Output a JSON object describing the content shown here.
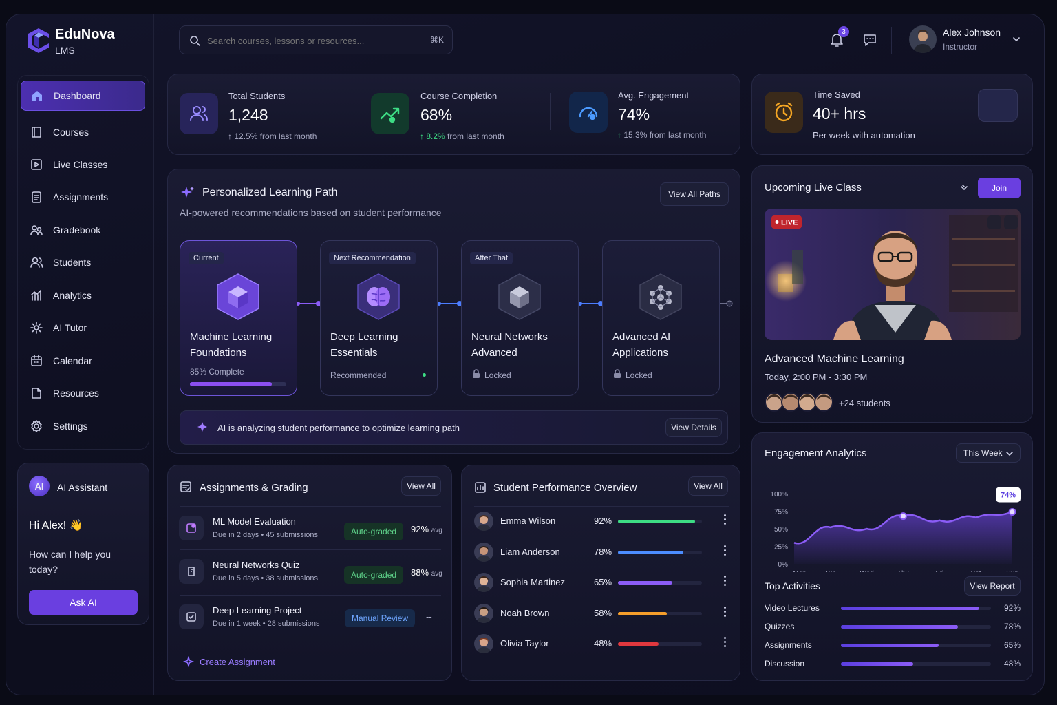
{
  "brand": {
    "name": "EduNova",
    "sub": "LMS"
  },
  "search": {
    "placeholder": "Search courses, lessons or resources...",
    "shortcut": "⌘K"
  },
  "notifications": {
    "count": "3"
  },
  "user": {
    "name": "Alex Johnson",
    "role": "Instructor"
  },
  "sidebar": {
    "items": [
      {
        "label": "Dashboard",
        "icon": "home-icon",
        "active": true
      },
      {
        "label": "Courses",
        "icon": "book-icon"
      },
      {
        "label": "Live Classes",
        "icon": "video-icon"
      },
      {
        "label": "Assignments",
        "icon": "clipboard-icon"
      },
      {
        "label": "Gradebook",
        "icon": "gradebook-icon"
      },
      {
        "label": "Students",
        "icon": "users-icon"
      },
      {
        "label": "Analytics",
        "icon": "analytics-icon"
      },
      {
        "label": "AI Tutor",
        "icon": "sparkle-icon"
      },
      {
        "label": "Calendar",
        "icon": "calendar-icon"
      },
      {
        "label": "Resources",
        "icon": "folder-icon"
      },
      {
        "label": "Settings",
        "icon": "gear-icon"
      }
    ]
  },
  "assistant": {
    "badge": "AI",
    "title": "AI Assistant",
    "greeting": "Hi Alex! 👋",
    "prompt": "How can I help you today?",
    "button": "Ask AI"
  },
  "stats": [
    {
      "label": "Total Students",
      "value": "1,248",
      "change": "12.5%",
      "suffix": "from last month",
      "color": "#8b7cf6"
    },
    {
      "label": "Course Completion",
      "value": "68%",
      "change": "8.2%",
      "suffix": "from last month",
      "color": "#3ddc84"
    },
    {
      "label": "Avg. Engagement",
      "value": "74%",
      "change": "15.3%",
      "suffix": "from last month",
      "color": "#4c9bff"
    }
  ],
  "time_saved": {
    "label": "Time Saved",
    "value": "40+ hrs",
    "sub": "Per week with automation"
  },
  "learning_path": {
    "title": "Personalized Learning Path",
    "subtitle": "AI-powered recommendations based on student performance",
    "button": "View All Paths",
    "cards": [
      {
        "tag": "Current",
        "title1": "Machine Learning",
        "title2": "Foundations",
        "status": "85% Complete",
        "progress": 0.85
      },
      {
        "tag": "Next Recommendation",
        "title1": "Deep Learning",
        "title2": "Essentials",
        "status": "Recommended"
      },
      {
        "tag": "After That",
        "title1": "Neural Networks",
        "title2": "Advanced",
        "status": "Locked"
      },
      {
        "tag": "",
        "title1": "Advanced AI",
        "title2": "Applications",
        "status": "Locked"
      }
    ],
    "ai_note": "AI is analyzing student performance to optimize learning path",
    "ai_button": "View Details"
  },
  "live_class": {
    "title": "Upcoming Live Class",
    "join": "Join",
    "live_badge": "LIVE",
    "course": "Advanced Machine Learning",
    "time": "Today, 2:00 PM - 3:30 PM",
    "students": "+24 students"
  },
  "assignments": {
    "title": "Assignments & Grading",
    "view_all": "View All",
    "rows": [
      {
        "name": "ML Model Evaluation",
        "meta": "Due in 2 days • 45 submissions",
        "badge": "Auto-graded",
        "score": "92%",
        "avg": "avg"
      },
      {
        "name": "Neural Networks Quiz",
        "meta": "Due in 5 days • 38 submissions",
        "badge": "Auto-graded",
        "score": "88%",
        "avg": "avg"
      },
      {
        "name": "Deep Learning Project",
        "meta": "Due in 1 week • 28 submissions",
        "badge": "Manual Review",
        "score": "--",
        "avg": ""
      }
    ],
    "create": "Create Assignment"
  },
  "performance": {
    "title": "Student Performance Overview",
    "view_all": "View All",
    "rows": [
      {
        "name": "Emma Wilson",
        "score": "92%",
        "value": 0.92,
        "color": "#3ddc84"
      },
      {
        "name": "Liam Anderson",
        "score": "78%",
        "value": 0.78,
        "color": "#4c8dff"
      },
      {
        "name": "Sophia Martinez",
        "score": "65%",
        "value": 0.65,
        "color": "#8b5cf6"
      },
      {
        "name": "Noah Brown",
        "score": "58%",
        "value": 0.58,
        "color": "#f59e2b"
      },
      {
        "name": "Olivia Taylor",
        "score": "48%",
        "value": 0.48,
        "color": "#e0383e"
      }
    ]
  },
  "engagement": {
    "title": "Engagement Analytics",
    "range": "This Week",
    "callout": "74%",
    "top_title": "Top Activities",
    "report": "View Report",
    "activities": [
      {
        "name": "Video Lectures",
        "value": "92%",
        "fraction": 0.92
      },
      {
        "name": "Quizzes",
        "value": "78%",
        "fraction": 0.78
      },
      {
        "name": "Assignments",
        "value": "65%",
        "fraction": 0.65
      },
      {
        "name": "Discussion",
        "value": "48%",
        "fraction": 0.48
      }
    ]
  },
  "chart_data": {
    "type": "area",
    "x": [
      "Mon",
      "Tue",
      "Wed",
      "Thu",
      "Fri",
      "Sat",
      "Sun"
    ],
    "series": [
      {
        "values": [
          30,
          52,
          50,
          68,
          62,
          66,
          74
        ]
      }
    ],
    "y_ticks": [
      "100%",
      "75%",
      "50%",
      "25%",
      "0%"
    ],
    "ylim": [
      0,
      100
    ],
    "grid": false
  },
  "colors": {
    "accent": "#6d3fe0",
    "bg": "#0d0e1e"
  }
}
